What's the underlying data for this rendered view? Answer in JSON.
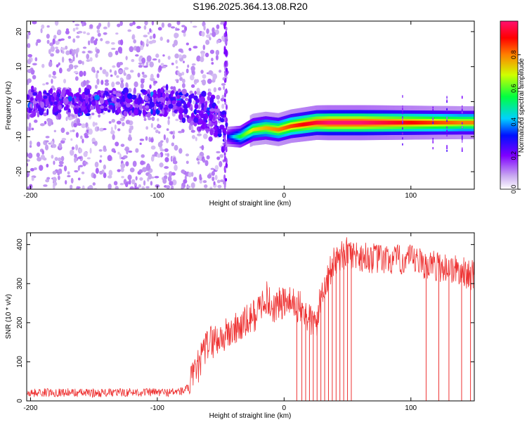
{
  "figure_title": "S196.2025.364.13.08.R20",
  "chart_data": [
    {
      "type": "heatmap",
      "title": "S196.2025.364.13.08.R20",
      "xlabel": "Height of straight line (km)",
      "ylabel": "Frequency (Hz)",
      "xlim": [
        -203,
        150
      ],
      "ylim": [
        -25,
        23
      ],
      "xticks": [
        -200,
        -100,
        0,
        100
      ],
      "xtick_labels": [
        "-200",
        "-100",
        "0",
        "100"
      ],
      "yticks": [
        -20,
        -10,
        0,
        10,
        20
      ],
      "ytick_labels": [
        "-20",
        "-10",
        "0",
        "10",
        "20"
      ],
      "colorbar": {
        "label": "Normalized spectral amplitude",
        "range": [
          0,
          1
        ],
        "ticks": [
          0.0,
          0.2,
          0.4,
          0.6,
          0.8
        ],
        "tick_labels": [
          "0.0",
          "0.2",
          "0.4",
          "0.6",
          "0.8"
        ]
      },
      "noise_region_x": [
        -203,
        -45
      ],
      "noise_center_freq": 0,
      "signal_trace": {
        "x": [
          -45,
          -35,
          -25,
          -15,
          -5,
          5,
          15,
          25,
          35,
          45,
          60,
          80,
          100,
          120,
          140,
          150
        ],
        "freq": [
          -10,
          -10,
          -8,
          -7.5,
          -8,
          -7,
          -6.5,
          -6,
          -6,
          -6,
          -6,
          -6,
          -6,
          -6,
          -6,
          -6
        ],
        "peak_amplitude": [
          0.3,
          0.55,
          0.7,
          0.75,
          0.8,
          0.85,
          0.9,
          0.95,
          1.0,
          1.0,
          1.0,
          0.95,
          0.9,
          0.85,
          0.8,
          0.8
        ]
      }
    },
    {
      "type": "line",
      "xlabel": "Height of straight line (km)",
      "ylabel": "SNR (10 * v/v)",
      "xlim": [
        -203,
        150
      ],
      "ylim": [
        0,
        430
      ],
      "xticks": [
        -200,
        -100,
        0,
        100
      ],
      "xtick_labels": [
        "-200",
        "-100",
        "0",
        "100"
      ],
      "yticks": [
        0,
        100,
        200,
        300,
        400
      ],
      "ytick_labels": [
        "0",
        "100",
        "200",
        "300",
        "400"
      ],
      "line_color": "#ee3333",
      "series": [
        {
          "name": "SNR",
          "x": [
            -203,
            -180,
            -150,
            -120,
            -90,
            -80,
            -75,
            -70,
            -60,
            -50,
            -40,
            -30,
            -20,
            -15,
            -10,
            0,
            10,
            20,
            25,
            30,
            35,
            40,
            50,
            60,
            70,
            80,
            90,
            100,
            110,
            120,
            130,
            140,
            150
          ],
          "y": [
            20,
            22,
            20,
            22,
            22,
            25,
            35,
            70,
            150,
            160,
            180,
            200,
            230,
            270,
            240,
            250,
            245,
            210,
            190,
            280,
            320,
            360,
            380,
            370,
            365,
            360,
            360,
            360,
            350,
            345,
            340,
            330,
            320
          ]
        }
      ],
      "dropout_x": [
        10,
        14,
        17,
        20,
        23,
        26,
        29,
        32,
        35,
        38,
        41,
        44,
        47,
        50,
        53,
        112,
        122,
        130,
        140,
        147
      ]
    }
  ]
}
